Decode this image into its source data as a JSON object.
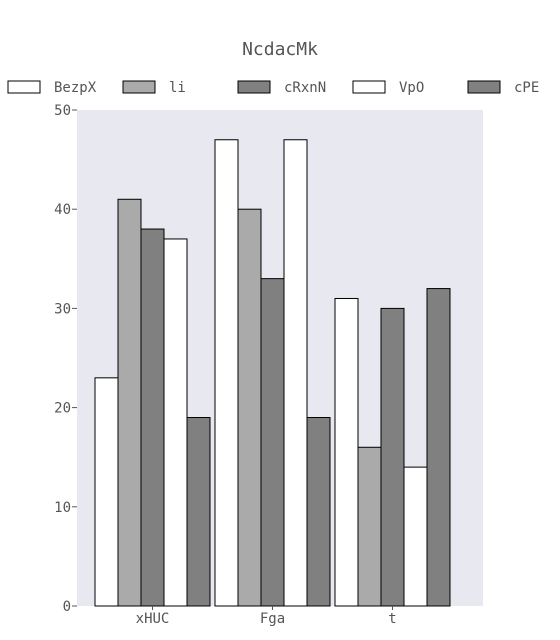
{
  "chart_data": {
    "type": "bar",
    "title": "NcdacMk",
    "xlabel": "",
    "ylabel": "",
    "categories": [
      "xHUC",
      "Fga",
      "t"
    ],
    "ylim": [
      0,
      50
    ],
    "yticks": [
      0,
      10,
      20,
      30,
      40,
      50
    ],
    "grid": false,
    "legend_position": "top",
    "plot_background": "#e8e8f0",
    "series": [
      {
        "name": "BezpX",
        "values": [
          23,
          47,
          31
        ],
        "color": "#ffffff"
      },
      {
        "name": "li",
        "values": [
          41,
          40,
          16
        ],
        "color": "#aaaaaa"
      },
      {
        "name": "cRxnN",
        "values": [
          38,
          33,
          30
        ],
        "color": "#808080"
      },
      {
        "name": "VpO",
        "values": [
          37,
          47,
          14
        ],
        "color": "#ffffff"
      },
      {
        "name": "cPE",
        "values": [
          19,
          19,
          32
        ],
        "color": "#808080"
      }
    ]
  }
}
